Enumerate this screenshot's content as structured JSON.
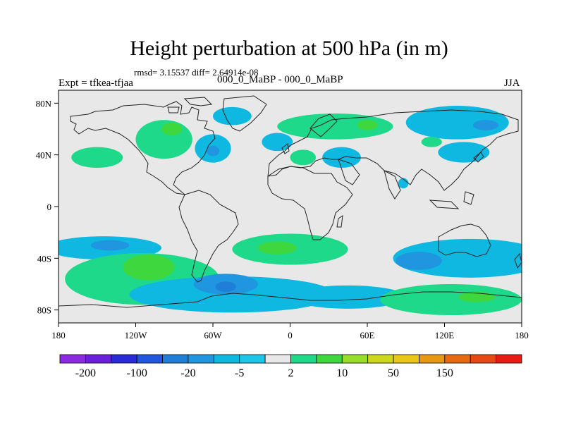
{
  "chart_data": {
    "type": "heatmap",
    "title": "Height perturbation at 500 hPa (in m)",
    "stats_line": "rmsd= 3.15537 diff= 2.64914e-08",
    "left_label": "Expt = tfkea-tfjaa",
    "center_label": "000_0_MaBP - 000_0_MaBP",
    "right_label": "JJA",
    "xlim": [
      -180,
      180
    ],
    "ylim": [
      -90,
      90
    ],
    "x_ticks": [
      {
        "value": -180,
        "label": "180"
      },
      {
        "value": -120,
        "label": "120W"
      },
      {
        "value": -60,
        "label": "60W"
      },
      {
        "value": 0,
        "label": "0"
      },
      {
        "value": 60,
        "label": "60E"
      },
      {
        "value": 120,
        "label": "120E"
      },
      {
        "value": 180,
        "label": "180"
      }
    ],
    "y_ticks": [
      {
        "value": 80,
        "label": "80N"
      },
      {
        "value": 40,
        "label": "40N"
      },
      {
        "value": 0,
        "label": "0"
      },
      {
        "value": -40,
        "label": "40S"
      },
      {
        "value": -80,
        "label": "80S"
      }
    ],
    "colorbar": {
      "colors": [
        "#8a2be2",
        "#6a1fdc",
        "#2a2ad8",
        "#2255e0",
        "#1f7fd8",
        "#2196e0",
        "#0fb8e0",
        "#1cc6e6",
        "#e8e8e8",
        "#1fd98a",
        "#3ed83e",
        "#98dd2a",
        "#cdd81c",
        "#e8c814",
        "#e89810",
        "#e86a10",
        "#e84814",
        "#e81a14"
      ],
      "labels": [
        {
          "after_box": 1,
          "text": "-200"
        },
        {
          "after_box": 3,
          "text": "-100"
        },
        {
          "after_box": 5,
          "text": "-20"
        },
        {
          "after_box": 7,
          "text": "-5"
        },
        {
          "after_box": 9,
          "text": "2"
        },
        {
          "after_box": 11,
          "text": "10"
        },
        {
          "after_box": 13,
          "text": "50"
        },
        {
          "after_box": 15,
          "text": "150"
        }
      ]
    },
    "background_color": "#e8e8e8",
    "anomaly_regions": [
      {
        "lon": -98,
        "lat": 52,
        "rlon": 22,
        "rlat": 15,
        "level": 1
      },
      {
        "lon": -92,
        "lat": 60,
        "rlon": 8,
        "rlat": 5,
        "level": 2
      },
      {
        "lon": -150,
        "lat": 38,
        "rlon": 20,
        "rlat": 8,
        "level": 1
      },
      {
        "lon": -60,
        "lat": 45,
        "rlon": 14,
        "rlat": 11,
        "level": -1
      },
      {
        "lon": -60,
        "lat": 43,
        "rlon": 5,
        "rlat": 4,
        "level": -2
      },
      {
        "lon": -45,
        "lat": 70,
        "rlon": 15,
        "rlat": 7,
        "level": -1
      },
      {
        "lon": -10,
        "lat": 50,
        "rlon": 12,
        "rlat": 7,
        "level": -1
      },
      {
        "lon": 35,
        "lat": 62,
        "rlon": 45,
        "rlat": 10,
        "level": 1
      },
      {
        "lon": 60,
        "lat": 63,
        "rlon": 8,
        "rlat": 4,
        "level": 2
      },
      {
        "lon": 10,
        "lat": 38,
        "rlon": 10,
        "rlat": 6,
        "level": 1
      },
      {
        "lon": 40,
        "lat": 38,
        "rlon": 15,
        "rlat": 8,
        "level": -1
      },
      {
        "lon": 130,
        "lat": 65,
        "rlon": 40,
        "rlat": 13,
        "level": -1
      },
      {
        "lon": 152,
        "lat": 63,
        "rlon": 10,
        "rlat": 4,
        "level": -2
      },
      {
        "lon": 110,
        "lat": 50,
        "rlon": 8,
        "rlat": 4,
        "level": 1
      },
      {
        "lon": 135,
        "lat": 42,
        "rlon": 20,
        "rlat": 8,
        "level": -1
      },
      {
        "lon": 88,
        "lat": 18,
        "rlon": 4,
        "rlat": 4,
        "level": -1
      },
      {
        "lon": -145,
        "lat": -32,
        "rlon": 45,
        "rlat": 9,
        "level": -1
      },
      {
        "lon": -140,
        "lat": -30,
        "rlon": 15,
        "rlat": 4,
        "level": -2
      },
      {
        "lon": -115,
        "lat": -56,
        "rlon": 60,
        "rlat": 20,
        "level": 1
      },
      {
        "lon": -110,
        "lat": -47,
        "rlon": 20,
        "rlat": 10,
        "level": 2
      },
      {
        "lon": 0,
        "lat": -33,
        "rlon": 45,
        "rlat": 12,
        "level": 1
      },
      {
        "lon": -10,
        "lat": -32,
        "rlon": 15,
        "rlat": 5,
        "level": 2
      },
      {
        "lon": -45,
        "lat": -68,
        "rlon": 80,
        "rlat": 14,
        "level": -1
      },
      {
        "lon": -50,
        "lat": -60,
        "rlon": 25,
        "rlat": 8,
        "level": -2
      },
      {
        "lon": -50,
        "lat": -62,
        "rlon": 8,
        "rlat": 4,
        "level": -3
      },
      {
        "lon": 45,
        "lat": -70,
        "rlon": 45,
        "rlat": 9,
        "level": -1
      },
      {
        "lon": 140,
        "lat": -40,
        "rlon": 60,
        "rlat": 15,
        "level": -1
      },
      {
        "lon": 100,
        "lat": -42,
        "rlon": 18,
        "rlat": 7,
        "level": -2
      },
      {
        "lon": 125,
        "lat": -72,
        "rlon": 55,
        "rlat": 12,
        "level": 1
      },
      {
        "lon": 145,
        "lat": -70,
        "rlon": 14,
        "rlat": 4,
        "level": 2
      }
    ]
  }
}
